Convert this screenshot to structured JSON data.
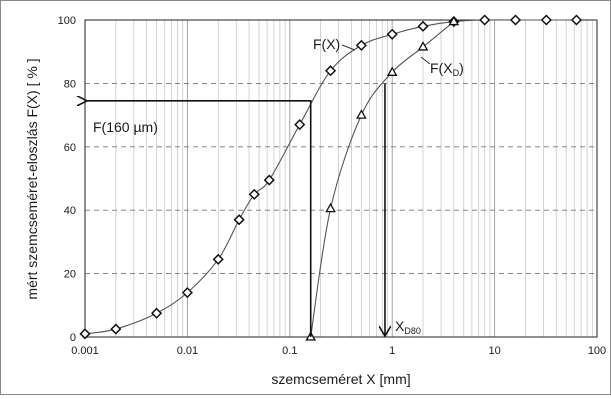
{
  "chart_data": {
    "type": "line",
    "xscale": "log",
    "xlim": [
      0.001,
      100
    ],
    "ylim": [
      0,
      100
    ],
    "xlabel": "szemcseméret X [mm]",
    "ylabel": "mért szemcseméret-eloszlás F(X) [ % ]",
    "x_ticks": [
      {
        "v": 0.001,
        "label": "0.001"
      },
      {
        "v": 0.01,
        "label": "0.01"
      },
      {
        "v": 0.1,
        "label": "0.1"
      },
      {
        "v": 1,
        "label": "1"
      },
      {
        "v": 10,
        "label": "10"
      },
      {
        "v": 100,
        "label": "100"
      }
    ],
    "y_ticks": [
      {
        "v": 0,
        "label": "0"
      },
      {
        "v": 20,
        "label": "20"
      },
      {
        "v": 40,
        "label": "40"
      },
      {
        "v": 60,
        "label": "60"
      },
      {
        "v": 80,
        "label": "80"
      },
      {
        "v": 100,
        "label": "100"
      }
    ],
    "grid": {
      "major_y": "dashed",
      "minor_x": true
    },
    "series": [
      {
        "name": "F(X)",
        "marker": "diamond",
        "x": [
          0.001,
          0.002,
          0.005,
          0.01,
          0.02,
          0.032,
          0.045,
          0.063,
          0.125,
          0.25,
          0.5,
          1,
          2,
          4,
          8,
          16,
          32,
          63
        ],
        "y": [
          1,
          2.5,
          7.5,
          14,
          24.5,
          37,
          45,
          49.5,
          67,
          84,
          92,
          95.5,
          98,
          99.5,
          100,
          100,
          100,
          100
        ]
      },
      {
        "name": "F(X_D)",
        "marker": "triangle",
        "x": [
          0.16,
          0.25,
          0.5,
          1,
          2,
          4
        ],
        "y": [
          0,
          40.5,
          70,
          83.5,
          91.5,
          99.5
        ]
      }
    ],
    "annotations": {
      "h_arrow": {
        "label": "F(160 µm)",
        "x": 0.16,
        "y": 74.5
      },
      "v_arrow": {
        "label_main": "X",
        "label_sub": "D80",
        "x": 0.85,
        "y": 80
      }
    }
  }
}
